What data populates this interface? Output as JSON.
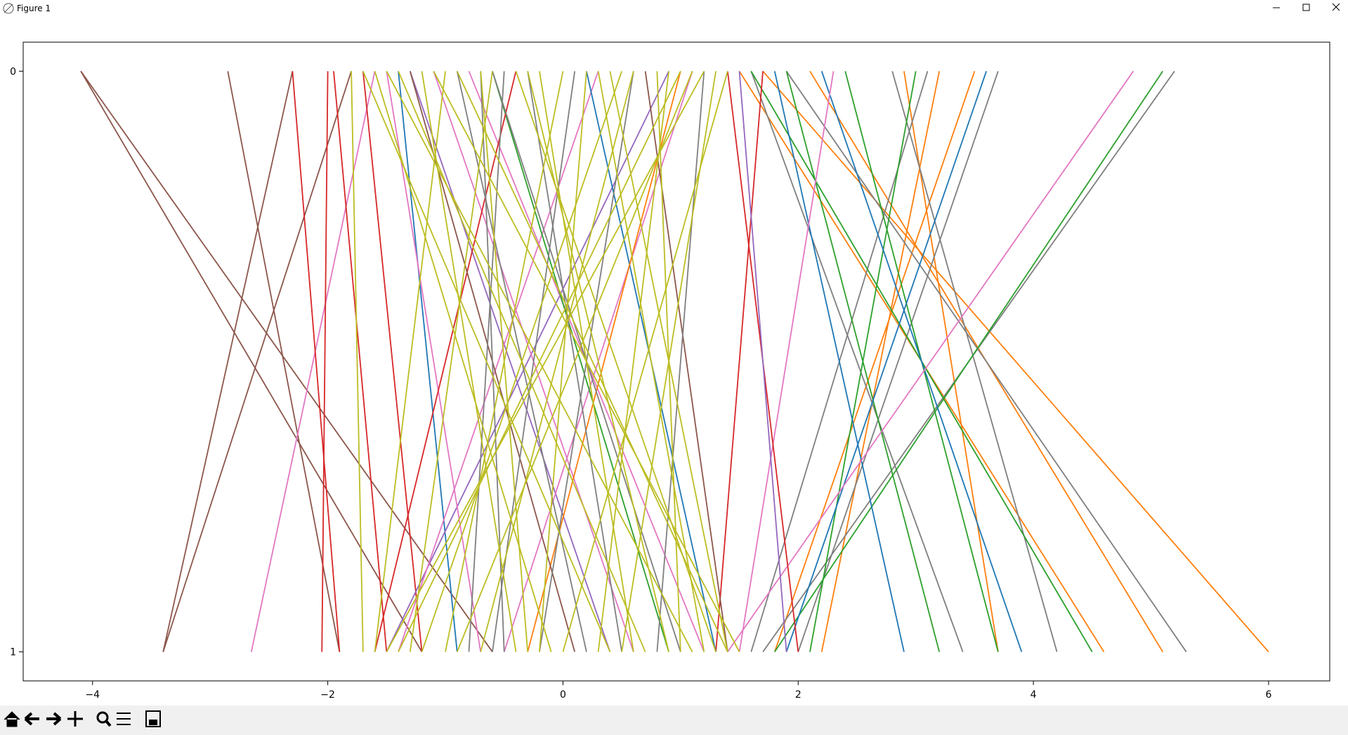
{
  "window_title": "Figure 1",
  "chart_data": {
    "type": "line",
    "xlim": [
      -4.59,
      6.52
    ],
    "ylim": [
      1.05,
      -0.05
    ],
    "xticks": [
      {
        "value": -4,
        "label": "−4"
      },
      {
        "value": -2,
        "label": "−2"
      },
      0,
      2,
      4,
      6
    ],
    "yticks": [
      0,
      1
    ],
    "series": [
      {
        "color": "#8c564b",
        "x": [
          -4.1,
          -0.6
        ],
        "values": [
          0,
          1
        ]
      },
      {
        "color": "#8c564b",
        "x": [
          -4.1,
          -1.2
        ],
        "values": [
          0,
          1
        ]
      },
      {
        "color": "#8c564b",
        "x": [
          -1.8,
          -3.4
        ],
        "values": [
          0,
          1
        ]
      },
      {
        "color": "#8c564b",
        "x": [
          -2.3,
          -3.4
        ],
        "values": [
          0,
          1
        ]
      },
      {
        "color": "#8c564b",
        "x": [
          -2.85,
          -1.9
        ],
        "values": [
          0,
          1
        ]
      },
      {
        "color": "#e377c2",
        "x": [
          -1.6,
          -2.65
        ],
        "values": [
          0,
          1
        ]
      },
      {
        "color": "#ff7f0e",
        "x": [
          1.7,
          6.0
        ],
        "values": [
          0,
          1
        ]
      },
      {
        "color": "#ff7f0e",
        "x": [
          2.1,
          5.1
        ],
        "values": [
          0,
          1
        ]
      },
      {
        "color": "#ff7f0e",
        "x": [
          1.5,
          4.6
        ],
        "values": [
          0,
          1
        ]
      },
      {
        "color": "#ff7f0e",
        "x": [
          3.5,
          1.8
        ],
        "values": [
          0,
          1
        ]
      },
      {
        "color": "#ff7f0e",
        "x": [
          2.9,
          3.7
        ],
        "values": [
          0,
          1
        ]
      },
      {
        "color": "#ff7f0e",
        "x": [
          3.2,
          2.2
        ],
        "values": [
          0,
          1
        ]
      },
      {
        "color": "#7f7f7f",
        "x": [
          5.2,
          1.7
        ],
        "values": [
          0,
          1
        ]
      },
      {
        "color": "#7f7f7f",
        "x": [
          3.7,
          2.0
        ],
        "values": [
          0,
          1
        ]
      },
      {
        "color": "#7f7f7f",
        "x": [
          1.9,
          5.3
        ],
        "values": [
          0,
          1
        ]
      },
      {
        "color": "#7f7f7f",
        "x": [
          2.8,
          4.2
        ],
        "values": [
          0,
          1
        ]
      },
      {
        "color": "#7f7f7f",
        "x": [
          3.1,
          1.6
        ],
        "values": [
          0,
          1
        ]
      },
      {
        "color": "#7f7f7f",
        "x": [
          1.6,
          3.4
        ],
        "values": [
          0,
          1
        ]
      },
      {
        "color": "#2ca02c",
        "x": [
          5.1,
          1.8
        ],
        "values": [
          0,
          1
        ]
      },
      {
        "color": "#2ca02c",
        "x": [
          2.4,
          3.7
        ],
        "values": [
          0,
          1
        ]
      },
      {
        "color": "#2ca02c",
        "x": [
          1.6,
          4.5
        ],
        "values": [
          0,
          1
        ]
      },
      {
        "color": "#2ca02c",
        "x": [
          3.0,
          2.1
        ],
        "values": [
          0,
          1
        ]
      },
      {
        "color": "#2ca02c",
        "x": [
          1.9,
          3.2
        ],
        "values": [
          0,
          1
        ]
      },
      {
        "color": "#1f77b4",
        "x": [
          3.6,
          1.9
        ],
        "values": [
          0,
          1
        ]
      },
      {
        "color": "#1f77b4",
        "x": [
          2.2,
          3.9
        ],
        "values": [
          0,
          1
        ]
      },
      {
        "color": "#1f77b4",
        "x": [
          1.8,
          2.9
        ],
        "values": [
          0,
          1
        ]
      },
      {
        "color": "#1f77b4",
        "x": [
          -1.4,
          -0.9
        ],
        "values": [
          0,
          1
        ]
      },
      {
        "color": "#e377c2",
        "x": [
          4.85,
          1.4
        ],
        "values": [
          0,
          1
        ]
      },
      {
        "color": "#e377c2",
        "x": [
          2.3,
          1.5
        ],
        "values": [
          0,
          1
        ]
      },
      {
        "color": "#d62728",
        "x": [
          -2.0,
          -2.05
        ],
        "values": [
          0,
          1
        ]
      },
      {
        "color": "#d62728",
        "x": [
          -1.95,
          -1.5
        ],
        "values": [
          0,
          1
        ]
      },
      {
        "color": "#d62728",
        "x": [
          -2.3,
          -1.9
        ],
        "values": [
          0,
          1
        ]
      },
      {
        "color": "#d62728",
        "x": [
          1.4,
          2.0
        ],
        "values": [
          0,
          1
        ]
      },
      {
        "color": "#d62728",
        "x": [
          -1.7,
          -1.2
        ],
        "values": [
          0,
          1
        ]
      },
      {
        "color": "#d62728",
        "x": [
          1.7,
          1.3
        ],
        "values": [
          0,
          1
        ]
      },
      {
        "color": "#9467bd",
        "x": [
          -1.3,
          0.4
        ],
        "values": [
          0,
          1
        ]
      },
      {
        "color": "#9467bd",
        "x": [
          0.9,
          -1.5
        ],
        "values": [
          0,
          1
        ]
      },
      {
        "color": "#9467bd",
        "x": [
          1.5,
          1.9
        ],
        "values": [
          0,
          1
        ]
      },
      {
        "color": "#e377c2",
        "x": [
          -1.1,
          0.6
        ],
        "values": [
          0,
          1
        ]
      },
      {
        "color": "#e377c2",
        "x": [
          0.3,
          -1.4
        ],
        "values": [
          0,
          1
        ]
      },
      {
        "color": "#e377c2",
        "x": [
          -0.8,
          1.2
        ],
        "values": [
          0,
          1
        ]
      },
      {
        "color": "#e377c2",
        "x": [
          1.1,
          -0.5
        ],
        "values": [
          0,
          1
        ]
      },
      {
        "color": "#e377c2",
        "x": [
          -1.5,
          -0.7
        ],
        "values": [
          0,
          1
        ]
      },
      {
        "color": "#1f77b4",
        "x": [
          0.2,
          1.3
        ],
        "values": [
          0,
          1
        ]
      },
      {
        "color": "#2ca02c",
        "x": [
          -0.6,
          0.9
        ],
        "values": [
          0,
          1
        ]
      },
      {
        "color": "#ff7f0e",
        "x": [
          1.0,
          -0.3
        ],
        "values": [
          0,
          1
        ]
      },
      {
        "color": "#d62728",
        "x": [
          -0.4,
          -1.6
        ],
        "values": [
          0,
          1
        ]
      },
      {
        "color": "#8c564b",
        "x": [
          0.7,
          1.4
        ],
        "values": [
          0,
          1
        ]
      },
      {
        "color": "#8c564b",
        "x": [
          -1.3,
          0.1
        ],
        "values": [
          0,
          1
        ]
      },
      {
        "color": "#7f7f7f",
        "x": [
          -0.7,
          -0.5
        ],
        "values": [
          0,
          1
        ]
      },
      {
        "color": "#7f7f7f",
        "x": [
          -0.5,
          -0.8
        ],
        "values": [
          0,
          1
        ]
      },
      {
        "color": "#7f7f7f",
        "x": [
          -0.9,
          0.2
        ],
        "values": [
          0,
          1
        ]
      },
      {
        "color": "#7f7f7f",
        "x": [
          0.1,
          -0.6
        ],
        "values": [
          0,
          1
        ]
      },
      {
        "color": "#7f7f7f",
        "x": [
          -0.3,
          0.5
        ],
        "values": [
          0,
          1
        ]
      },
      {
        "color": "#7f7f7f",
        "x": [
          0.6,
          -0.2
        ],
        "values": [
          0,
          1
        ]
      },
      {
        "color": "#7f7f7f",
        "x": [
          -0.6,
          1.0
        ],
        "values": [
          0,
          1
        ]
      },
      {
        "color": "#7f7f7f",
        "x": [
          1.2,
          0.8
        ],
        "values": [
          0,
          1
        ]
      },
      {
        "color": "#bcbd22",
        "x": [
          -1.8,
          -1.7
        ],
        "values": [
          0,
          1
        ]
      },
      {
        "color": "#bcbd22",
        "x": [
          -1.7,
          0.4
        ],
        "values": [
          0,
          1
        ]
      },
      {
        "color": "#bcbd22",
        "x": [
          -1.5,
          1.1
        ],
        "values": [
          0,
          1
        ]
      },
      {
        "color": "#bcbd22",
        "x": [
          -1.2,
          -0.4
        ],
        "values": [
          0,
          1
        ]
      },
      {
        "color": "#bcbd22",
        "x": [
          -0.9,
          1.4
        ],
        "values": [
          0,
          1
        ]
      },
      {
        "color": "#bcbd22",
        "x": [
          -0.6,
          -1.3
        ],
        "values": [
          0,
          1
        ]
      },
      {
        "color": "#bcbd22",
        "x": [
          -0.3,
          0.9
        ],
        "values": [
          0,
          1
        ]
      },
      {
        "color": "#bcbd22",
        "x": [
          0.0,
          -1.0
        ],
        "values": [
          0,
          1
        ]
      },
      {
        "color": "#bcbd22",
        "x": [
          0.3,
          1.2
        ],
        "values": [
          0,
          1
        ]
      },
      {
        "color": "#bcbd22",
        "x": [
          0.6,
          -0.7
        ],
        "values": [
          0,
          1
        ]
      },
      {
        "color": "#bcbd22",
        "x": [
          0.9,
          0.3
        ],
        "values": [
          0,
          1
        ]
      },
      {
        "color": "#bcbd22",
        "x": [
          1.2,
          -1.5
        ],
        "values": [
          0,
          1
        ]
      },
      {
        "color": "#bcbd22",
        "x": [
          1.4,
          0.0
        ],
        "values": [
          0,
          1
        ]
      },
      {
        "color": "#bcbd22",
        "x": [
          -1.4,
          0.7
        ],
        "values": [
          0,
          1
        ]
      },
      {
        "color": "#bcbd22",
        "x": [
          -1.0,
          -1.6
        ],
        "values": [
          0,
          1
        ]
      },
      {
        "color": "#bcbd22",
        "x": [
          -0.4,
          1.3
        ],
        "values": [
          0,
          1
        ]
      },
      {
        "color": "#bcbd22",
        "x": [
          0.2,
          -0.2
        ],
        "values": [
          0,
          1
        ]
      },
      {
        "color": "#bcbd22",
        "x": [
          0.8,
          1.0
        ],
        "values": [
          0,
          1
        ]
      },
      {
        "color": "#bcbd22",
        "x": [
          1.1,
          -0.9
        ],
        "values": [
          0,
          1
        ]
      },
      {
        "color": "#bcbd22",
        "x": [
          -1.6,
          -0.1
        ],
        "values": [
          0,
          1
        ]
      },
      {
        "color": "#bcbd22",
        "x": [
          -0.2,
          0.6
        ],
        "values": [
          0,
          1
        ]
      },
      {
        "color": "#bcbd22",
        "x": [
          0.5,
          -1.2
        ],
        "values": [
          0,
          1
        ]
      },
      {
        "color": "#bcbd22",
        "x": [
          1.3,
          0.5
        ],
        "values": [
          0,
          1
        ]
      },
      {
        "color": "#bcbd22",
        "x": [
          -1.1,
          1.5
        ],
        "values": [
          0,
          1
        ]
      },
      {
        "color": "#bcbd22",
        "x": [
          -0.7,
          -0.3
        ],
        "values": [
          0,
          1
        ]
      },
      {
        "color": "#bcbd22",
        "x": [
          0.4,
          1.4
        ],
        "values": [
          0,
          1
        ]
      },
      {
        "color": "#bcbd22",
        "x": [
          1.0,
          -1.4
        ],
        "values": [
          0,
          1
        ]
      }
    ]
  }
}
